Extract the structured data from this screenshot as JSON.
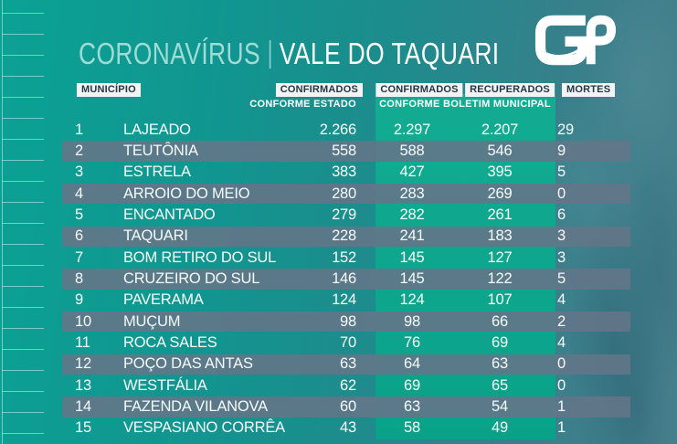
{
  "header": {
    "title_left": "CORONAVÍRUS",
    "title_separator": "|",
    "title_right": "VALE DO TAQUARI",
    "logo_text": "GP"
  },
  "columns": {
    "municipio": "MUNICÍPIO",
    "confirmados_estado": "CONFIRMADOS",
    "confirmados_municipal": "CONFIRMADOS",
    "recuperados": "RECUPERADOS",
    "mortes": "MORTES",
    "sub_confirmados_estado": "CONFORME ESTADO",
    "sub_boletim_municipal": "CONFORME BOLETIM MUNICIPAL"
  },
  "rows": [
    {
      "rank": "1",
      "municipio": "LAJEADO",
      "confirmados_estado": "2.266",
      "confirmados_municipal": "2.297",
      "recuperados": "2.207",
      "mortes": "29"
    },
    {
      "rank": "2",
      "municipio": "TEUTÔNIA",
      "confirmados_estado": "558",
      "confirmados_municipal": "588",
      "recuperados": "546",
      "mortes": "9"
    },
    {
      "rank": "3",
      "municipio": "ESTRELA",
      "confirmados_estado": "383",
      "confirmados_municipal": "427",
      "recuperados": "395",
      "mortes": "5"
    },
    {
      "rank": "4",
      "municipio": "ARROIO DO MEIO",
      "confirmados_estado": "280",
      "confirmados_municipal": "283",
      "recuperados": "269",
      "mortes": "0"
    },
    {
      "rank": "5",
      "municipio": "ENCANTADO",
      "confirmados_estado": "279",
      "confirmados_municipal": "282",
      "recuperados": "261",
      "mortes": "6"
    },
    {
      "rank": "6",
      "municipio": "TAQUARI",
      "confirmados_estado": "228",
      "confirmados_municipal": "241",
      "recuperados": "183",
      "mortes": "3"
    },
    {
      "rank": "7",
      "municipio": "BOM RETIRO DO SUL",
      "confirmados_estado": "152",
      "confirmados_municipal": "145",
      "recuperados": "127",
      "mortes": "3"
    },
    {
      "rank": "8",
      "municipio": "CRUZEIRO DO SUL",
      "confirmados_estado": "146",
      "confirmados_municipal": "145",
      "recuperados": "122",
      "mortes": "5"
    },
    {
      "rank": "9",
      "municipio": "PAVERAMA",
      "confirmados_estado": "124",
      "confirmados_municipal": "124",
      "recuperados": "107",
      "mortes": "4"
    },
    {
      "rank": "10",
      "municipio": "MUÇUM",
      "confirmados_estado": "98",
      "confirmados_municipal": "98",
      "recuperados": "66",
      "mortes": "2"
    },
    {
      "rank": "11",
      "municipio": "ROCA SALES",
      "confirmados_estado": "70",
      "confirmados_municipal": "76",
      "recuperados": "69",
      "mortes": "4"
    },
    {
      "rank": "12",
      "municipio": "POÇO DAS ANTAS",
      "confirmados_estado": "63",
      "confirmados_municipal": "64",
      "recuperados": "63",
      "mortes": "0"
    },
    {
      "rank": "13",
      "municipio": "WESTFÁLIA",
      "confirmados_estado": "62",
      "confirmados_municipal": "69",
      "recuperados": "65",
      "mortes": "0"
    },
    {
      "rank": "14",
      "municipio": "FAZENDA VILANOVA",
      "confirmados_estado": "60",
      "confirmados_municipal": "63",
      "recuperados": "54",
      "mortes": "1"
    },
    {
      "rank": "15",
      "municipio": "VESPASIANO CORRÊA",
      "confirmados_estado": "43",
      "confirmados_municipal": "58",
      "recuperados": "49",
      "mortes": "1"
    }
  ],
  "colors": {
    "background_left": "#0ba294",
    "background_right": "#477e8c",
    "municipal_band": "#0ea78f",
    "row_stripe": "#637688",
    "label_background": "#f2f3f2",
    "label_text": "#233746",
    "title_accent": "#9edcd5",
    "text": "#ffffff"
  },
  "chart_data": {
    "type": "table",
    "title": "CORONAVÍRUS | VALE DO TAQUARI",
    "columns": [
      "MUNICÍPIO",
      "CONFIRMADOS (CONFORME ESTADO)",
      "CONFIRMADOS (CONFORME BOLETIM MUNICIPAL)",
      "RECUPERADOS (CONFORME BOLETIM MUNICIPAL)",
      "MORTES"
    ],
    "rows": [
      [
        1,
        "LAJEADO",
        2266,
        2297,
        2207,
        29
      ],
      [
        2,
        "TEUTÔNIA",
        558,
        588,
        546,
        9
      ],
      [
        3,
        "ESTRELA",
        383,
        427,
        395,
        5
      ],
      [
        4,
        "ARROIO DO MEIO",
        280,
        283,
        269,
        0
      ],
      [
        5,
        "ENCANTADO",
        279,
        282,
        261,
        6
      ],
      [
        6,
        "TAQUARI",
        228,
        241,
        183,
        3
      ],
      [
        7,
        "BOM RETIRO DO SUL",
        152,
        145,
        127,
        3
      ],
      [
        8,
        "CRUZEIRO DO SUL",
        146,
        145,
        122,
        5
      ],
      [
        9,
        "PAVERAMA",
        124,
        124,
        107,
        4
      ],
      [
        10,
        "MUÇUM",
        98,
        98,
        66,
        2
      ],
      [
        11,
        "ROCA SALES",
        70,
        76,
        69,
        4
      ],
      [
        12,
        "POÇO DAS ANTAS",
        63,
        64,
        63,
        0
      ],
      [
        13,
        "WESTFÁLIA",
        62,
        69,
        65,
        0
      ],
      [
        14,
        "FAZENDA VILANOVA",
        60,
        63,
        54,
        1
      ],
      [
        15,
        "VESPASIANO CORRÊA",
        43,
        58,
        49,
        1
      ]
    ]
  }
}
